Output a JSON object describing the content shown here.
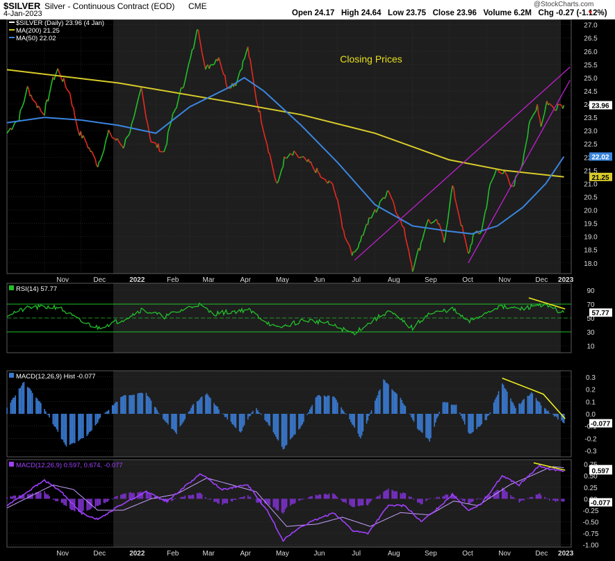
{
  "header": {
    "symbol": "$SILVER",
    "name": "Silver - Continuous Contract (EOD)",
    "exchange": "CME",
    "date": "4-Jan-2023",
    "watermark": "@StockCharts.com",
    "ohlc_text": "Open 24.17   High 24.64   Low 23.75   Close 23.96   Volume 6.2M   Chg -0.27 (-1.12%)"
  },
  "colors": {
    "up": "#22c02a",
    "down": "#e82a20",
    "ma200": "#d8cc2a",
    "ma50": "#3a86e0",
    "rsi": "#22c02a",
    "macd_hist": "#3a7ad0",
    "macd_line": "#a040ff",
    "trendline": "#c020d0",
    "divergence": "#f0f020",
    "background": "#000000",
    "shade": "#1e1e1e",
    "grid": "#3a3a3a"
  },
  "chart_data": [
    {
      "type": "line",
      "panel": "price",
      "annotation": "Closing Prices",
      "legend": [
        {
          "text": "$SILVER (Daily) 23.96 (4 Jan)",
          "color": "#ffffff"
        },
        {
          "text": "MA(200) 21.25",
          "color": "#d8cc2a"
        },
        {
          "text": "MA(50) 22.02",
          "color": "#3a86e0"
        }
      ],
      "ylim": [
        17.6,
        27.2
      ],
      "y_ticks": [
        18.0,
        18.5,
        19.0,
        19.5,
        20.0,
        20.5,
        21.0,
        21.5,
        22.0,
        22.5,
        23.0,
        23.5,
        24.0,
        24.5,
        25.0,
        25.5,
        26.0,
        26.5,
        27.0
      ],
      "x_labels": [
        "Nov",
        "Dec",
        "2022",
        "Feb",
        "Mar",
        "Apr",
        "May",
        "Jun",
        "Jul",
        "Aug",
        "Sep",
        "Oct",
        "Nov",
        "Dec",
        "2023"
      ],
      "value_tags": [
        {
          "text": "23.96",
          "value": 23.96,
          "color": "#ffffff"
        },
        {
          "text": "22.02",
          "value": 22.02,
          "color": "#3a86e0"
        },
        {
          "text": "21.25",
          "value": 21.25,
          "color": "#d8cc2a"
        }
      ],
      "close_keypoints": [
        [
          "2021-10-01",
          22.9
        ],
        [
          "2021-10-11",
          23.5
        ],
        [
          "2021-10-18",
          24.6
        ],
        [
          "2021-10-25",
          24.0
        ],
        [
          "2021-11-01",
          23.7
        ],
        [
          "2021-11-08",
          24.9
        ],
        [
          "2021-11-12",
          25.3
        ],
        [
          "2021-11-22",
          24.4
        ],
        [
          "2021-11-29",
          23.0
        ],
        [
          "2021-12-06",
          22.5
        ],
        [
          "2021-12-15",
          21.7
        ],
        [
          "2021-12-24",
          22.9
        ],
        [
          "2022-01-05",
          22.4
        ],
        [
          "2022-01-14",
          23.4
        ],
        [
          "2022-01-20",
          24.6
        ],
        [
          "2022-01-28",
          22.6
        ],
        [
          "2022-02-08",
          22.2
        ],
        [
          "2022-02-14",
          23.4
        ],
        [
          "2022-02-24",
          24.8
        ],
        [
          "2022-03-01",
          25.6
        ],
        [
          "2022-03-08",
          26.9
        ],
        [
          "2022-03-14",
          25.3
        ],
        [
          "2022-03-25",
          25.8
        ],
        [
          "2022-04-01",
          24.7
        ],
        [
          "2022-04-08",
          24.8
        ],
        [
          "2022-04-18",
          26.1
        ],
        [
          "2022-04-25",
          24.2
        ],
        [
          "2022-05-03",
          22.7
        ],
        [
          "2022-05-12",
          20.9
        ],
        [
          "2022-05-18",
          21.9
        ],
        [
          "2022-05-26",
          22.1
        ],
        [
          "2022-06-03",
          21.9
        ],
        [
          "2022-06-10",
          21.7
        ],
        [
          "2022-06-20",
          21.1
        ],
        [
          "2022-06-28",
          20.9
        ],
        [
          "2022-07-06",
          19.2
        ],
        [
          "2022-07-14",
          18.3
        ],
        [
          "2022-07-20",
          18.9
        ],
        [
          "2022-07-27",
          19.6
        ],
        [
          "2022-08-05",
          20.2
        ],
        [
          "2022-08-12",
          20.8
        ],
        [
          "2022-08-17",
          20.2
        ],
        [
          "2022-08-26",
          19.1
        ],
        [
          "2022-09-01",
          17.8
        ],
        [
          "2022-09-07",
          18.6
        ],
        [
          "2022-09-13",
          19.6
        ],
        [
          "2022-09-22",
          19.5
        ],
        [
          "2022-09-27",
          18.8
        ],
        [
          "2022-10-04",
          20.9
        ],
        [
          "2022-10-11",
          19.5
        ],
        [
          "2022-10-17",
          18.3
        ],
        [
          "2022-10-21",
          19.0
        ],
        [
          "2022-10-28",
          19.2
        ],
        [
          "2022-11-04",
          20.9
        ],
        [
          "2022-11-10",
          21.6
        ],
        [
          "2022-11-16",
          21.4
        ],
        [
          "2022-11-22",
          20.8
        ],
        [
          "2022-11-30",
          21.7
        ],
        [
          "2022-12-07",
          23.3
        ],
        [
          "2022-12-13",
          24.0
        ],
        [
          "2022-12-16",
          23.2
        ],
        [
          "2022-12-21",
          24.1
        ],
        [
          "2022-12-27",
          23.8
        ],
        [
          "2022-12-30",
          24.0
        ],
        [
          "2023-01-04",
          23.96
        ]
      ],
      "ma200_keypoints": [
        [
          "2021-10-01",
          25.3
        ],
        [
          "2022-01-01",
          24.8
        ],
        [
          "2022-04-01",
          24.1
        ],
        [
          "2022-06-01",
          23.6
        ],
        [
          "2022-08-01",
          22.9
        ],
        [
          "2022-10-01",
          21.9
        ],
        [
          "2022-11-15",
          21.5
        ],
        [
          "2023-01-04",
          21.25
        ]
      ],
      "ma50_keypoints": [
        [
          "2021-10-01",
          23.3
        ],
        [
          "2021-11-01",
          23.5
        ],
        [
          "2021-12-01",
          23.4
        ],
        [
          "2022-01-01",
          23.2
        ],
        [
          "2022-02-01",
          22.9
        ],
        [
          "2022-03-01",
          23.9
        ],
        [
          "2022-04-01",
          24.6
        ],
        [
          "2022-04-15",
          25.0
        ],
        [
          "2022-05-01",
          24.5
        ],
        [
          "2022-06-01",
          23.2
        ],
        [
          "2022-07-01",
          21.8
        ],
        [
          "2022-08-01",
          20.2
        ],
        [
          "2022-09-01",
          19.4
        ],
        [
          "2022-10-01",
          19.2
        ],
        [
          "2022-10-20",
          19.1
        ],
        [
          "2022-11-10",
          19.4
        ],
        [
          "2022-12-01",
          20.1
        ],
        [
          "2022-12-20",
          21.0
        ],
        [
          "2023-01-04",
          22.02
        ]
      ],
      "trendlines": [
        {
          "from": [
            "2022-07-15",
            18.1
          ],
          "to": [
            "2023-01-09",
            25.4
          ]
        },
        {
          "from": [
            "2022-10-17",
            18.0
          ],
          "to": [
            "2023-01-09",
            24.9
          ]
        }
      ]
    },
    {
      "type": "line",
      "panel": "rsi",
      "legend": "RSI(14) 57.77",
      "ylim": [
        0,
        100
      ],
      "y_ticks": [
        10,
        30,
        50,
        70,
        90
      ],
      "overbought": 70,
      "oversold": 30,
      "mid": 50,
      "value_tag": "57.77",
      "keypoints": [
        [
          "2021-10-01",
          55
        ],
        [
          "2021-10-20",
          65
        ],
        [
          "2021-11-12",
          66
        ],
        [
          "2021-12-01",
          45
        ],
        [
          "2021-12-15",
          36
        ],
        [
          "2022-01-05",
          48
        ],
        [
          "2022-01-20",
          62
        ],
        [
          "2022-02-08",
          52
        ],
        [
          "2022-03-08",
          70
        ],
        [
          "2022-03-20",
          56
        ],
        [
          "2022-04-18",
          62
        ],
        [
          "2022-05-12",
          35
        ],
        [
          "2022-06-03",
          47
        ],
        [
          "2022-06-20",
          44
        ],
        [
          "2022-07-14",
          28
        ],
        [
          "2022-08-12",
          60
        ],
        [
          "2022-09-01",
          35
        ],
        [
          "2022-09-13",
          55
        ],
        [
          "2022-10-04",
          63
        ],
        [
          "2022-10-17",
          44
        ],
        [
          "2022-11-10",
          66
        ],
        [
          "2022-12-01",
          63
        ],
        [
          "2022-12-15",
          70
        ],
        [
          "2023-01-04",
          57.77
        ]
      ],
      "divergence": {
        "from": [
          "2022-12-06",
          79
        ],
        "to": [
          "2023-01-05",
          63
        ]
      }
    },
    {
      "type": "bar",
      "panel": "macd_hist",
      "legend": "MACD(12,26,9) Hist -0.077",
      "ylim": [
        -0.35,
        0.35
      ],
      "y_ticks": [
        -0.3,
        -0.2,
        -0.1,
        0.0,
        0.1,
        0.2,
        0.3
      ],
      "value_tag": "-0.077",
      "keypoints": [
        [
          "2021-10-01",
          0.05
        ],
        [
          "2021-10-15",
          0.26
        ],
        [
          "2021-10-28",
          0.1
        ],
        [
          "2021-11-08",
          -0.08
        ],
        [
          "2021-11-19",
          -0.27
        ],
        [
          "2021-12-06",
          -0.18
        ],
        [
          "2021-12-20",
          0.0
        ],
        [
          "2022-01-05",
          0.15
        ],
        [
          "2022-01-24",
          0.17
        ],
        [
          "2022-02-07",
          -0.05
        ],
        [
          "2022-02-18",
          -0.16
        ],
        [
          "2022-03-04",
          0.08
        ],
        [
          "2022-03-15",
          0.17
        ],
        [
          "2022-03-28",
          0.0
        ],
        [
          "2022-04-12",
          -0.15
        ],
        [
          "2022-04-24",
          0.06
        ],
        [
          "2022-05-06",
          -0.1
        ],
        [
          "2022-05-17",
          -0.29
        ],
        [
          "2022-06-01",
          -0.1
        ],
        [
          "2022-06-14",
          0.15
        ],
        [
          "2022-06-28",
          0.14
        ],
        [
          "2022-07-08",
          0.0
        ],
        [
          "2022-07-20",
          -0.2
        ],
        [
          "2022-08-08",
          0.28
        ],
        [
          "2022-08-22",
          0.13
        ],
        [
          "2022-09-05",
          -0.12
        ],
        [
          "2022-09-15",
          -0.22
        ],
        [
          "2022-09-26",
          0.1
        ],
        [
          "2022-10-07",
          0.07
        ],
        [
          "2022-10-18",
          -0.17
        ],
        [
          "2022-11-01",
          -0.05
        ],
        [
          "2022-11-14",
          0.25
        ],
        [
          "2022-11-25",
          0.05
        ],
        [
          "2022-12-08",
          0.17
        ],
        [
          "2022-12-18",
          0.05
        ],
        [
          "2023-01-04",
          -0.077
        ]
      ],
      "divergence": [
        [
          "2022-11-14",
          0.29
        ],
        [
          "2022-12-18",
          0.16
        ],
        [
          "2023-01-05",
          -0.04
        ]
      ]
    },
    {
      "type": "line",
      "panel": "macd",
      "legend": "MACD(12,26,9) 0.597, 0.674, -0.077",
      "legend_color": "#a040ff",
      "ylim": [
        -1.05,
        0.85
      ],
      "y_ticks": [
        -1.0,
        -0.75,
        -0.5,
        -0.25,
        0.0,
        0.25,
        0.5,
        0.75
      ],
      "value_tags": [
        {
          "text": "0.674",
          "value": 0.674
        },
        {
          "text": "0.597",
          "value": 0.597
        },
        {
          "text": "-0.077",
          "value": -0.077
        }
      ],
      "macd_keypoints": [
        [
          "2021-10-01",
          -0.15
        ],
        [
          "2021-10-15",
          0.1
        ],
        [
          "2021-11-01",
          0.4
        ],
        [
          "2021-11-15",
          0.15
        ],
        [
          "2021-12-01",
          -0.3
        ],
        [
          "2021-12-15",
          -0.45
        ],
        [
          "2022-01-05",
          -0.1
        ],
        [
          "2022-01-24",
          0.15
        ],
        [
          "2022-02-10",
          -0.05
        ],
        [
          "2022-03-01",
          0.35
        ],
        [
          "2022-03-10",
          0.55
        ],
        [
          "2022-03-28",
          0.2
        ],
        [
          "2022-04-18",
          0.3
        ],
        [
          "2022-05-05",
          -0.3
        ],
        [
          "2022-05-17",
          -0.9
        ],
        [
          "2022-06-01",
          -0.6
        ],
        [
          "2022-06-14",
          -0.45
        ],
        [
          "2022-06-28",
          -0.3
        ],
        [
          "2022-07-14",
          -0.7
        ],
        [
          "2022-07-26",
          -0.75
        ],
        [
          "2022-08-12",
          -0.15
        ],
        [
          "2022-08-26",
          -0.15
        ],
        [
          "2022-09-08",
          -0.5
        ],
        [
          "2022-09-22",
          -0.2
        ],
        [
          "2022-10-04",
          0.1
        ],
        [
          "2022-10-17",
          -0.25
        ],
        [
          "2022-10-28",
          -0.1
        ],
        [
          "2022-11-14",
          0.5
        ],
        [
          "2022-11-28",
          0.3
        ],
        [
          "2022-12-15",
          0.72
        ],
        [
          "2022-12-22",
          0.65
        ],
        [
          "2023-01-04",
          0.597
        ]
      ],
      "signal_keypoints": [
        [
          "2021-10-01",
          -0.2
        ],
        [
          "2021-10-20",
          0.05
        ],
        [
          "2021-11-08",
          0.3
        ],
        [
          "2021-11-25",
          0.2
        ],
        [
          "2021-12-15",
          -0.25
        ],
        [
          "2022-01-05",
          -0.25
        ],
        [
          "2022-01-28",
          0.0
        ],
        [
          "2022-02-18",
          0.1
        ],
        [
          "2022-03-15",
          0.45
        ],
        [
          "2022-04-05",
          0.3
        ],
        [
          "2022-04-25",
          0.15
        ],
        [
          "2022-05-20",
          -0.6
        ],
        [
          "2022-06-14",
          -0.55
        ],
        [
          "2022-07-05",
          -0.4
        ],
        [
          "2022-07-28",
          -0.6
        ],
        [
          "2022-08-22",
          -0.3
        ],
        [
          "2022-09-15",
          -0.35
        ],
        [
          "2022-10-05",
          -0.05
        ],
        [
          "2022-10-25",
          -0.15
        ],
        [
          "2022-11-20",
          0.3
        ],
        [
          "2022-12-08",
          0.5
        ],
        [
          "2022-12-25",
          0.7
        ],
        [
          "2023-01-04",
          0.674
        ]
      ],
      "divergence": {
        "from": [
          "2022-12-10",
          0.78
        ],
        "to": [
          "2023-01-05",
          0.62
        ]
      }
    }
  ]
}
